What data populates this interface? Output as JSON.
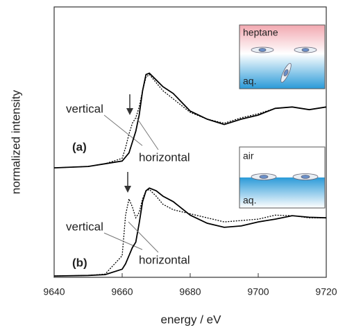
{
  "chart_data": {
    "type": "line",
    "xlabel": "energy / eV",
    "ylabel": "normalized intensity",
    "xlim": [
      9640,
      9720
    ],
    "xticks": [
      9640,
      9660,
      9680,
      9700,
      9720
    ],
    "ylim": [
      0,
      10
    ],
    "x": [
      9640,
      9650,
      9655,
      9660,
      9661,
      9662,
      9663,
      9664,
      9665,
      9666,
      9667,
      9668,
      9670,
      9672,
      9675,
      9680,
      9685,
      9690,
      9695,
      9700,
      9705,
      9710,
      9715,
      9720
    ],
    "panels": [
      {
        "label": "(a)",
        "inset": {
          "top": "heptane",
          "bottom": "aq."
        },
        "series": [
          {
            "name": "vertical",
            "color": "#000000",
            "style": "dotted",
            "values": [
              4.05,
              4.1,
              4.2,
              4.4,
              4.8,
              5.3,
              5.7,
              5.9,
              6.3,
              6.9,
              7.4,
              7.5,
              7.2,
              6.9,
              6.6,
              6.1,
              5.85,
              5.7,
              5.9,
              6.05,
              6.25,
              6.3,
              6.2,
              6.3
            ]
          },
          {
            "name": "horizontal",
            "color": "#000000",
            "style": "solid",
            "values": [
              4.05,
              4.1,
              4.2,
              4.3,
              4.45,
              4.6,
              5.0,
              5.4,
              6.0,
              6.9,
              7.5,
              7.55,
              7.3,
              7.05,
              6.8,
              6.15,
              5.85,
              5.65,
              5.85,
              6.0,
              6.25,
              6.3,
              6.2,
              6.3
            ]
          }
        ]
      },
      {
        "label": "(b)",
        "inset": {
          "top": "air",
          "bottom": "aq."
        },
        "series": [
          {
            "name": "vertical",
            "color": "#000000",
            "style": "dotted",
            "values": [
              0.05,
              0.07,
              0.12,
              0.8,
              2.3,
              2.9,
              2.6,
              2.2,
              2.4,
              2.9,
              3.2,
              3.25,
              3.0,
              2.7,
              2.5,
              2.35,
              2.2,
              2.05,
              2.1,
              2.15,
              2.3,
              2.28,
              2.2,
              2.2
            ]
          },
          {
            "name": "horizontal",
            "color": "#000000",
            "style": "solid",
            "values": [
              0.05,
              0.07,
              0.1,
              0.3,
              0.5,
              0.8,
              1.1,
              1.3,
              2.0,
              2.8,
              3.2,
              3.3,
              3.2,
              3.0,
              2.8,
              2.3,
              2.0,
              1.85,
              1.9,
              2.05,
              2.15,
              2.28,
              2.22,
              2.2
            ]
          }
        ]
      }
    ]
  }
}
